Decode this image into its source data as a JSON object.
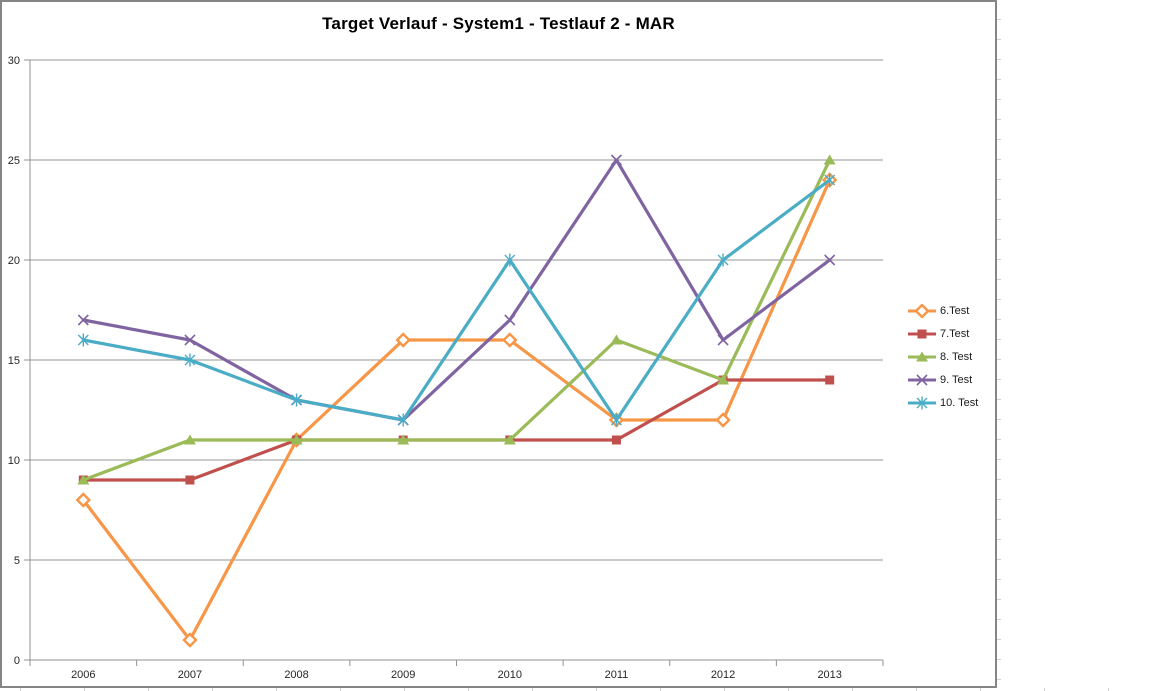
{
  "frame": {
    "border_color": "#858585",
    "background": "#ffffff"
  },
  "worksheet": {
    "gridline_color": "#cfcfcf"
  },
  "chart_data": {
    "type": "line",
    "title": "Target Verlauf - System1 - Testlauf 2 - MAR",
    "categories": [
      "2006",
      "2007",
      "2008",
      "2009",
      "2010",
      "2011",
      "2012",
      "2013"
    ],
    "series": [
      {
        "name": "6.Test",
        "color": "#F79646",
        "marker": "diamond-open",
        "values": [
          8,
          1,
          11,
          16,
          16,
          12,
          12,
          24
        ]
      },
      {
        "name": "7.Test",
        "color": "#C0504D",
        "marker": "square",
        "values": [
          9,
          9,
          11,
          11,
          11,
          11,
          14,
          14
        ]
      },
      {
        "name": "8. Test",
        "color": "#9BBB59",
        "marker": "triangle",
        "values": [
          9,
          11,
          11,
          11,
          11,
          16,
          14,
          25
        ]
      },
      {
        "name": "9. Test",
        "color": "#8064A2",
        "marker": "x",
        "values": [
          17,
          16,
          13,
          12,
          17,
          25,
          16,
          20
        ]
      },
      {
        "name": "10. Test",
        "color": "#4BACC6",
        "marker": "star",
        "values": [
          16,
          15,
          13,
          12,
          20,
          12,
          20,
          24
        ]
      }
    ],
    "ylim": [
      0,
      30
    ],
    "ytick_step": 5,
    "ytick_labels": [
      "0",
      "5",
      "10",
      "15",
      "20",
      "25",
      "30"
    ],
    "grid": true,
    "legend_position": "right",
    "axis_color": "#919191",
    "gridline_color": "#969696",
    "tick_label_color": "#262626"
  }
}
